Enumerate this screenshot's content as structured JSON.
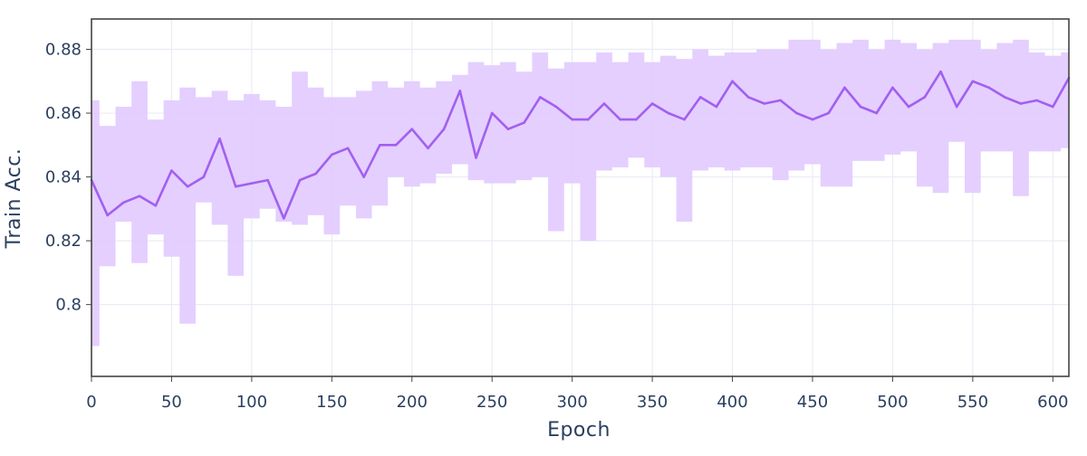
{
  "chart_data": {
    "type": "line",
    "title": "",
    "xlabel": "Epoch",
    "ylabel": "Train Acc.",
    "xlim": [
      0,
      610
    ],
    "ylim": [
      0.7775,
      0.8895
    ],
    "x_ticks": [
      0,
      50,
      100,
      150,
      200,
      250,
      300,
      350,
      400,
      450,
      500,
      550,
      600
    ],
    "x_tick_labels": [
      "0",
      "50",
      "100",
      "150",
      "200",
      "250",
      "300",
      "350",
      "400",
      "450",
      "500",
      "550",
      "600"
    ],
    "y_ticks": [
      0.8,
      0.82,
      0.84,
      0.86,
      0.88
    ],
    "y_tick_labels": [
      "0.8",
      "0.82",
      "0.84",
      "0.86",
      "0.88"
    ],
    "grid": true,
    "legend": "none",
    "colors": {
      "line": "#a25ff0",
      "band": "#e3ccff",
      "grid": "#e8ecf4",
      "axis": "#444444",
      "text": "#2a3f5f"
    },
    "series": [
      {
        "x": [
          0,
          10,
          20,
          30,
          40,
          50,
          60,
          70,
          80,
          90,
          100,
          110,
          120,
          130,
          140,
          150,
          160,
          170,
          180,
          190,
          200,
          210,
          220,
          230,
          240,
          250,
          260,
          270,
          280,
          290,
          300,
          310,
          320,
          330,
          340,
          350,
          360,
          370,
          380,
          390,
          400,
          410,
          420,
          430,
          440,
          450,
          460,
          470,
          480,
          490,
          500,
          510,
          520,
          530,
          540,
          550,
          560,
          570,
          580,
          590,
          600,
          610
        ],
        "y": [
          0.839,
          0.828,
          0.832,
          0.834,
          0.831,
          0.842,
          0.837,
          0.84,
          0.852,
          0.837,
          0.838,
          0.839,
          0.827,
          0.839,
          0.841,
          0.847,
          0.849,
          0.84,
          0.85,
          0.85,
          0.855,
          0.849,
          0.855,
          0.867,
          0.846,
          0.86,
          0.855,
          0.857,
          0.865,
          0.862,
          0.858,
          0.858,
          0.863,
          0.858,
          0.858,
          0.863,
          0.86,
          0.858,
          0.865,
          0.862,
          0.87,
          0.865,
          0.863,
          0.864,
          0.86,
          0.858,
          0.86,
          0.868,
          0.862,
          0.86,
          0.868,
          0.862,
          0.865,
          0.873,
          0.862,
          0.87,
          0.868,
          0.865,
          0.863,
          0.864,
          0.862,
          0.871
        ],
        "lower": [
          0.787,
          0.812,
          0.826,
          0.813,
          0.822,
          0.815,
          0.794,
          0.832,
          0.825,
          0.809,
          0.827,
          0.83,
          0.826,
          0.825,
          0.828,
          0.822,
          0.831,
          0.827,
          0.831,
          0.84,
          0.837,
          0.838,
          0.841,
          0.844,
          0.839,
          0.838,
          0.838,
          0.839,
          0.84,
          0.823,
          0.838,
          0.82,
          0.842,
          0.843,
          0.846,
          0.843,
          0.84,
          0.826,
          0.842,
          0.843,
          0.842,
          0.843,
          0.843,
          0.839,
          0.842,
          0.844,
          0.837,
          0.837,
          0.845,
          0.845,
          0.847,
          0.848,
          0.837,
          0.835,
          0.851,
          0.835,
          0.848,
          0.848,
          0.834,
          0.848,
          0.848,
          0.849
        ],
        "upper": [
          0.864,
          0.856,
          0.862,
          0.87,
          0.858,
          0.864,
          0.868,
          0.865,
          0.867,
          0.864,
          0.866,
          0.864,
          0.862,
          0.873,
          0.868,
          0.865,
          0.865,
          0.867,
          0.87,
          0.868,
          0.87,
          0.868,
          0.87,
          0.872,
          0.876,
          0.875,
          0.876,
          0.873,
          0.879,
          0.874,
          0.876,
          0.876,
          0.879,
          0.876,
          0.879,
          0.876,
          0.878,
          0.877,
          0.88,
          0.878,
          0.879,
          0.879,
          0.88,
          0.88,
          0.883,
          0.883,
          0.88,
          0.882,
          0.883,
          0.88,
          0.883,
          0.882,
          0.88,
          0.882,
          0.883,
          0.883,
          0.88,
          0.882,
          0.883,
          0.879,
          0.878,
          0.879
        ]
      }
    ]
  }
}
